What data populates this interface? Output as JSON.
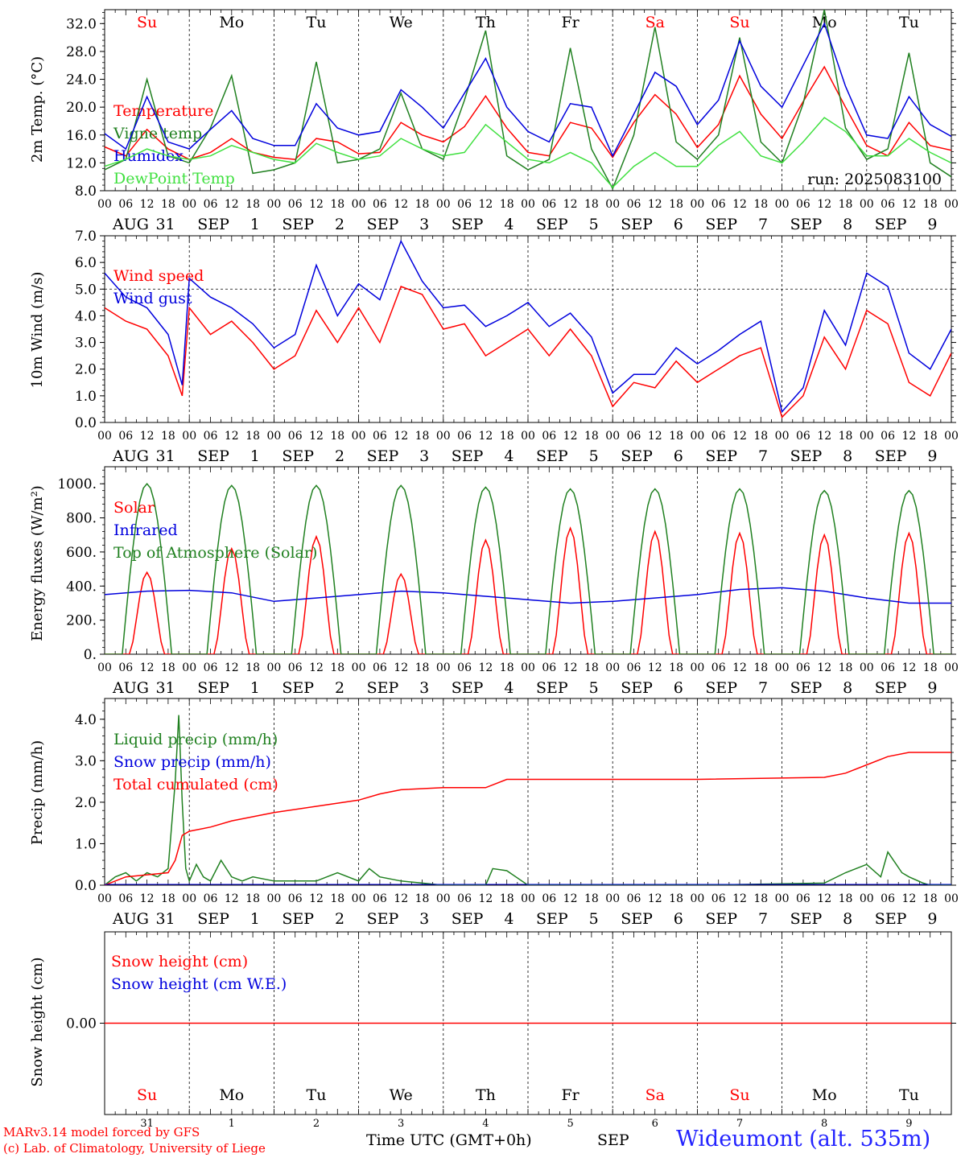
{
  "colors": {
    "red": "#ff0000",
    "green": "#208020",
    "blue": "#0000dd",
    "lightgreen": "#40e040",
    "black": "#000000"
  },
  "days": [
    {
      "dow": "Su",
      "month": "AUG",
      "day": "31",
      "weekend": true
    },
    {
      "dow": "Mo",
      "month": "SEP",
      "day": "1",
      "weekend": false
    },
    {
      "dow": "Tu",
      "month": "SEP",
      "day": "2",
      "weekend": false
    },
    {
      "dow": "We",
      "month": "SEP",
      "day": "3",
      "weekend": false
    },
    {
      "dow": "Th",
      "month": "SEP",
      "day": "4",
      "weekend": false
    },
    {
      "dow": "Fr",
      "month": "SEP",
      "day": "5",
      "weekend": false
    },
    {
      "dow": "Sa",
      "month": "SEP",
      "day": "6",
      "weekend": true
    },
    {
      "dow": "Su",
      "month": "SEP",
      "day": "7",
      "weekend": true
    },
    {
      "dow": "Mo",
      "month": "SEP",
      "day": "8",
      "weekend": false
    },
    {
      "dow": "Tu",
      "month": "SEP",
      "day": "9",
      "weekend": false
    }
  ],
  "hour_ticks": [
    "00",
    "06",
    "12",
    "18"
  ],
  "last_hour_tick": "00",
  "footer": {
    "model": "MARv3.14 model forced by GFS",
    "lab": "(c) Lab. of Climatology, University of Liege",
    "time_label": "Time UTC (GMT+0h)",
    "month_label": "SEP",
    "station": "Wideumont (alt. 535m)"
  },
  "chart_data": [
    {
      "type": "line",
      "ylabel": "2m Temp. (°C)",
      "ylim": [
        8,
        34
      ],
      "yticks": [
        "8.0",
        "12.0",
        "16.0",
        "20.0",
        "24.0",
        "28.0",
        "32.0"
      ],
      "ytick_values": [
        8,
        12,
        16,
        20,
        24,
        28,
        32
      ],
      "run_label": "run: 2025083100",
      "x_hours": [
        0,
        6,
        12,
        18,
        24,
        30,
        36,
        42,
        48,
        54,
        60,
        66,
        72,
        78,
        84,
        90,
        96,
        102,
        108,
        114,
        120,
        126,
        132,
        138,
        144,
        150,
        156,
        162,
        168,
        174,
        180,
        186,
        192,
        198,
        204,
        210,
        216,
        222,
        228,
        234,
        240
      ],
      "series": [
        {
          "name": "Temperature",
          "color": "red",
          "values": [
            14.3,
            13.0,
            16.8,
            14.0,
            12.5,
            13.5,
            15.5,
            13.5,
            12.8,
            12.5,
            15.5,
            15.0,
            13.3,
            13.5,
            17.8,
            16.0,
            15.0,
            17.2,
            21.6,
            17.0,
            13.5,
            13.0,
            17.8,
            17.0,
            12.8,
            17.8,
            21.8,
            19.0,
            14.2,
            17.5,
            24.5,
            19.0,
            15.5,
            20.8,
            25.8,
            20.0,
            14.5,
            13.0,
            17.8,
            14.5,
            13.8
          ]
        },
        {
          "name": "Vigne temp",
          "color": "green",
          "values": [
            11.0,
            12.5,
            24.0,
            13.0,
            12.0,
            17.0,
            24.5,
            10.5,
            11.0,
            12.0,
            26.5,
            12.0,
            12.5,
            14.0,
            22.0,
            14.0,
            12.5,
            21.0,
            31.0,
            13.0,
            11.0,
            12.5,
            28.5,
            14.0,
            8.3,
            16.0,
            31.5,
            15.0,
            12.5,
            16.0,
            30.0,
            15.0,
            12.0,
            20.5,
            34.0,
            17.0,
            12.5,
            14.0,
            27.8,
            12.0,
            10.0
          ]
        },
        {
          "name": "Humidex",
          "color": "blue",
          "values": [
            16.2,
            14.0,
            21.5,
            15.0,
            14.0,
            16.8,
            19.5,
            15.5,
            14.5,
            14.5,
            20.5,
            17.0,
            16.0,
            16.5,
            22.5,
            20.0,
            17.0,
            22.0,
            27.0,
            20.0,
            16.5,
            15.0,
            20.5,
            20.0,
            13.0,
            19.0,
            25.0,
            23.0,
            17.5,
            21.0,
            29.5,
            23.0,
            20.0,
            26.0,
            32.0,
            23.0,
            16.0,
            15.5,
            21.5,
            17.5,
            15.8
          ]
        },
        {
          "name": "DewPoint Temp",
          "color": "lightgreen",
          "values": [
            11.5,
            12.5,
            14.0,
            13.0,
            12.5,
            13.0,
            14.5,
            13.5,
            12.5,
            12.0,
            14.8,
            13.5,
            12.5,
            13.0,
            15.5,
            14.0,
            13.0,
            13.5,
            17.5,
            15.0,
            12.5,
            12.0,
            13.5,
            12.0,
            8.5,
            11.5,
            13.5,
            11.5,
            11.5,
            14.5,
            16.5,
            13.0,
            12.0,
            15.0,
            18.5,
            16.5,
            13.0,
            13.0,
            15.5,
            13.5,
            12.0
          ]
        }
      ]
    },
    {
      "type": "line",
      "ylabel": "10m Wind (m/s)",
      "ylim": [
        0,
        7
      ],
      "yticks": [
        "0.0",
        "1.0",
        "2.0",
        "3.0",
        "4.0",
        "5.0",
        "6.0",
        "7.0"
      ],
      "ytick_values": [
        0,
        1,
        2,
        3,
        4,
        5,
        6,
        7
      ],
      "x_hours": [
        0,
        6,
        12,
        18,
        22,
        24,
        30,
        36,
        42,
        48,
        54,
        60,
        66,
        72,
        78,
        84,
        90,
        96,
        102,
        108,
        114,
        120,
        126,
        132,
        138,
        144,
        150,
        156,
        162,
        168,
        174,
        180,
        186,
        192,
        198,
        204,
        210,
        216,
        222,
        228,
        234,
        240
      ],
      "series": [
        {
          "name": "Wind speed",
          "color": "red",
          "values": [
            4.3,
            3.8,
            3.5,
            2.5,
            1.0,
            4.3,
            3.3,
            3.8,
            3.0,
            2.0,
            2.5,
            4.2,
            3.0,
            4.3,
            3.0,
            5.1,
            4.8,
            3.5,
            3.7,
            2.5,
            3.0,
            3.5,
            2.5,
            3.5,
            2.5,
            0.6,
            1.5,
            1.3,
            2.3,
            1.5,
            2.0,
            2.5,
            2.8,
            0.2,
            1.0,
            3.2,
            2.0,
            4.2,
            3.7,
            1.5,
            1.0,
            2.6
          ]
        },
        {
          "name": "Wind gust",
          "color": "blue",
          "values": [
            5.6,
            4.7,
            4.3,
            3.3,
            1.4,
            5.4,
            4.7,
            4.3,
            3.7,
            2.8,
            3.3,
            5.9,
            4.0,
            5.2,
            4.6,
            6.8,
            5.3,
            4.3,
            4.4,
            3.6,
            4.0,
            4.5,
            3.6,
            4.1,
            3.2,
            1.1,
            1.8,
            1.8,
            2.8,
            2.2,
            2.7,
            3.3,
            3.8,
            0.4,
            1.3,
            4.2,
            2.9,
            5.6,
            5.1,
            2.6,
            2.0,
            3.5
          ]
        }
      ],
      "reference_line": 5.0
    },
    {
      "type": "line",
      "ylabel": "Energy fluxes (W/m²)",
      "ylim": [
        0,
        1100
      ],
      "yticks": [
        "0.",
        "200.",
        "400.",
        "600.",
        "800.",
        "1000."
      ],
      "ytick_values": [
        0,
        200,
        400,
        600,
        800,
        1000
      ],
      "series": [
        {
          "name": "Solar",
          "color": "red",
          "peaks": [
            480,
            620,
            690,
            470,
            670,
            740,
            720,
            710,
            700,
            710
          ]
        },
        {
          "name": "Infrared",
          "color": "blue",
          "values": [
            350,
            370,
            375,
            360,
            310,
            330,
            350,
            370,
            360,
            340,
            320,
            300,
            310,
            330,
            350,
            380,
            390,
            370,
            330,
            300,
            300
          ]
        },
        {
          "name": "Top of Atmosphere (Solar)",
          "color": "green",
          "peaks": [
            1000,
            990,
            990,
            990,
            980,
            970,
            970,
            970,
            960,
            960
          ]
        }
      ]
    },
    {
      "type": "line",
      "ylabel": "Precip (mm/h)",
      "ylim": [
        0,
        4.5
      ],
      "yticks": [
        "0.0",
        "1.0",
        "2.0",
        "3.0",
        "4.0"
      ],
      "ytick_values": [
        0,
        1,
        2,
        3,
        4
      ],
      "series": [
        {
          "name": "Liquid precip (mm/h)",
          "color": "green",
          "x_hours": [
            0,
            3,
            6,
            9,
            12,
            15,
            18,
            20,
            21,
            22,
            23,
            24,
            26,
            28,
            30,
            33,
            36,
            39,
            42,
            48,
            54,
            60,
            66,
            72,
            75,
            78,
            84,
            90,
            96,
            108,
            110,
            114,
            120,
            132,
            168,
            204,
            210,
            216,
            220,
            222,
            226,
            228,
            232,
            234,
            236,
            240
          ],
          "values": [
            0,
            0.2,
            0.3,
            0.1,
            0.3,
            0.2,
            0.4,
            2.5,
            4.1,
            2.0,
            0.4,
            0.1,
            0.5,
            0.2,
            0.1,
            0.6,
            0.2,
            0.1,
            0.2,
            0.1,
            0.1,
            0.1,
            0.3,
            0.1,
            0.4,
            0.2,
            0.1,
            0.05,
            0,
            0,
            0.4,
            0.35,
            0,
            0,
            0,
            0.05,
            0.3,
            0.5,
            0.2,
            0.8,
            0.3,
            0.2,
            0.05,
            0,
            0,
            0
          ]
        },
        {
          "name": "Snow precip (mm/h)",
          "color": "blue",
          "values": [
            0
          ]
        },
        {
          "name": "Total cumulated (cm)",
          "color": "red",
          "x_hours": [
            0,
            3,
            6,
            12,
            18,
            20,
            22,
            24,
            30,
            36,
            48,
            60,
            72,
            78,
            84,
            96,
            108,
            114,
            120,
            168,
            204,
            210,
            216,
            222,
            228,
            240
          ],
          "values": [
            0,
            0.1,
            0.2,
            0.25,
            0.3,
            0.6,
            1.2,
            1.3,
            1.4,
            1.55,
            1.75,
            1.9,
            2.05,
            2.2,
            2.3,
            2.35,
            2.35,
            2.55,
            2.55,
            2.55,
            2.6,
            2.7,
            2.9,
            3.1,
            3.2,
            3.2
          ]
        }
      ]
    },
    {
      "type": "line",
      "ylabel": "Snow height (cm)",
      "ylim": [
        -1,
        1
      ],
      "yticks": [
        "0.00"
      ],
      "ytick_values": [
        0
      ],
      "series": [
        {
          "name": "Snow height (cm)",
          "color": "red",
          "values": [
            0
          ]
        },
        {
          "name": "Snow height (cm W.E.)",
          "color": "blue",
          "values": [
            0
          ]
        }
      ]
    }
  ]
}
